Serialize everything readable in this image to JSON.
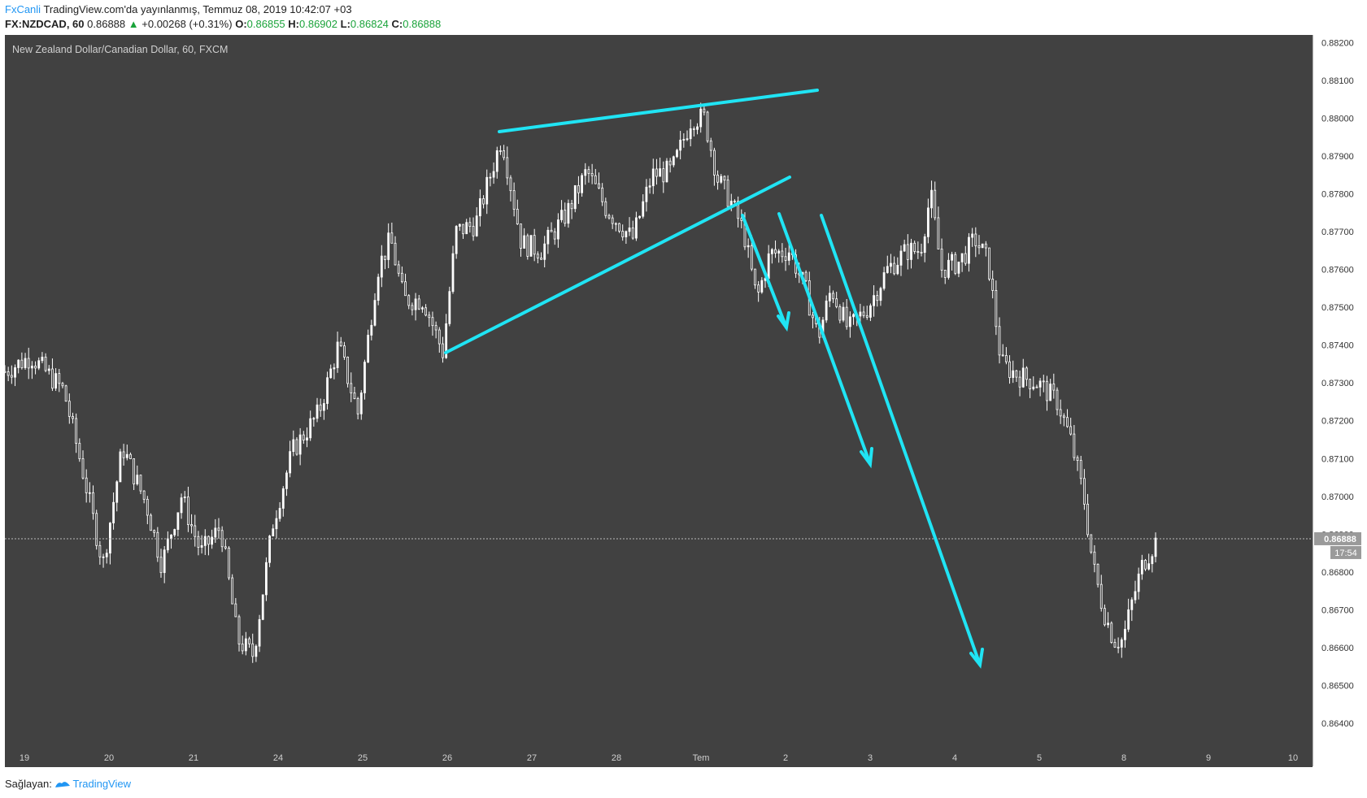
{
  "header": {
    "brand": "FxCanli",
    "published_text": " TradingView.com'da yayınlanmış, Temmuz 08, 2019 10:42:07 +03",
    "symbol_interval": "FX:NZDCAD, 60",
    "last_price": "0.86888",
    "change_arrow": "▲",
    "change": "+0.00268 (+0.31%)",
    "open_label": "O:",
    "open": "0.86855",
    "high_label": "H:",
    "high": "0.86902",
    "low_label": "L:",
    "low": "0.86824",
    "close_label": "C:",
    "close": "0.86888"
  },
  "footer": {
    "provided_by": "Sağlayan:",
    "tradingview": "TradingView"
  },
  "chart_data": {
    "type": "candlestick",
    "title": "New Zealand Dollar/Canadian Dollar, 60, FXCM",
    "ylim": [
      0.8634,
      0.8822
    ],
    "y_ticks": [
      "0.88200",
      "0.88100",
      "0.88000",
      "0.87900",
      "0.87800",
      "0.87700",
      "0.87600",
      "0.87500",
      "0.87400",
      "0.87300",
      "0.87200",
      "0.87100",
      "0.87000",
      "0.86900",
      "0.86800",
      "0.86700",
      "0.86600",
      "0.86500",
      "0.86400"
    ],
    "x_tick_labels": [
      "19",
      "20",
      "21",
      "24",
      "25",
      "26",
      "27",
      "28",
      "Tem",
      "2",
      "3",
      "4",
      "5",
      "8",
      "9",
      "10"
    ],
    "current_price": "0.86888",
    "countdown": "17:54",
    "background": "#414141",
    "drawing_color": "#20e4f4",
    "candle_color": "#ffffff",
    "price_path": [
      {
        "x": 0.0,
        "y": 0.8733
      },
      {
        "x": 0.02,
        "y": 0.8737
      },
      {
        "x": 0.045,
        "y": 0.8728
      },
      {
        "x": 0.06,
        "y": 0.8706
      },
      {
        "x": 0.075,
        "y": 0.8682
      },
      {
        "x": 0.09,
        "y": 0.8713
      },
      {
        "x": 0.108,
        "y": 0.8698
      },
      {
        "x": 0.12,
        "y": 0.8682
      },
      {
        "x": 0.135,
        "y": 0.87
      },
      {
        "x": 0.15,
        "y": 0.8685
      },
      {
        "x": 0.165,
        "y": 0.8692
      },
      {
        "x": 0.178,
        "y": 0.8662
      },
      {
        "x": 0.19,
        "y": 0.8658
      },
      {
        "x": 0.205,
        "y": 0.8693
      },
      {
        "x": 0.22,
        "y": 0.8712
      },
      {
        "x": 0.24,
        "y": 0.8722
      },
      {
        "x": 0.255,
        "y": 0.874
      },
      {
        "x": 0.27,
        "y": 0.8722
      },
      {
        "x": 0.285,
        "y": 0.876
      },
      {
        "x": 0.295,
        "y": 0.8768
      },
      {
        "x": 0.305,
        "y": 0.8752
      },
      {
        "x": 0.32,
        "y": 0.8752
      },
      {
        "x": 0.335,
        "y": 0.8738
      },
      {
        "x": 0.345,
        "y": 0.877
      },
      {
        "x": 0.36,
        "y": 0.8772
      },
      {
        "x": 0.38,
        "y": 0.8795
      },
      {
        "x": 0.395,
        "y": 0.8767
      },
      {
        "x": 0.41,
        "y": 0.8765
      },
      {
        "x": 0.43,
        "y": 0.8775
      },
      {
        "x": 0.445,
        "y": 0.8786
      },
      {
        "x": 0.46,
        "y": 0.8776
      },
      {
        "x": 0.48,
        "y": 0.8768
      },
      {
        "x": 0.495,
        "y": 0.8785
      },
      {
        "x": 0.51,
        "y": 0.8786
      },
      {
        "x": 0.525,
        "y": 0.88
      },
      {
        "x": 0.535,
        "y": 0.88
      },
      {
        "x": 0.545,
        "y": 0.8784
      },
      {
        "x": 0.555,
        "y": 0.8778
      },
      {
        "x": 0.565,
        "y": 0.877
      },
      {
        "x": 0.575,
        "y": 0.8752
      },
      {
        "x": 0.585,
        "y": 0.8764
      },
      {
        "x": 0.6,
        "y": 0.8765
      },
      {
        "x": 0.612,
        "y": 0.8755
      },
      {
        "x": 0.622,
        "y": 0.8742
      },
      {
        "x": 0.632,
        "y": 0.8755
      },
      {
        "x": 0.645,
        "y": 0.8744
      },
      {
        "x": 0.66,
        "y": 0.875
      },
      {
        "x": 0.675,
        "y": 0.876
      },
      {
        "x": 0.69,
        "y": 0.8765
      },
      {
        "x": 0.7,
        "y": 0.8765
      },
      {
        "x": 0.708,
        "y": 0.878
      },
      {
        "x": 0.716,
        "y": 0.876
      },
      {
        "x": 0.73,
        "y": 0.8762
      },
      {
        "x": 0.742,
        "y": 0.8768
      },
      {
        "x": 0.752,
        "y": 0.8762
      },
      {
        "x": 0.762,
        "y": 0.8735
      },
      {
        "x": 0.775,
        "y": 0.8732
      },
      {
        "x": 0.79,
        "y": 0.873
      },
      {
        "x": 0.805,
        "y": 0.8725
      },
      {
        "x": 0.815,
        "y": 0.8715
      },
      {
        "x": 0.825,
        "y": 0.87
      },
      {
        "x": 0.832,
        "y": 0.8682
      },
      {
        "x": 0.84,
        "y": 0.867
      },
      {
        "x": 0.848,
        "y": 0.8662
      },
      {
        "x": 0.855,
        "y": 0.8662
      },
      {
        "x": 0.862,
        "y": 0.8672
      },
      {
        "x": 0.87,
        "y": 0.8682
      },
      {
        "x": 0.88,
        "y": 0.8688
      }
    ]
  }
}
